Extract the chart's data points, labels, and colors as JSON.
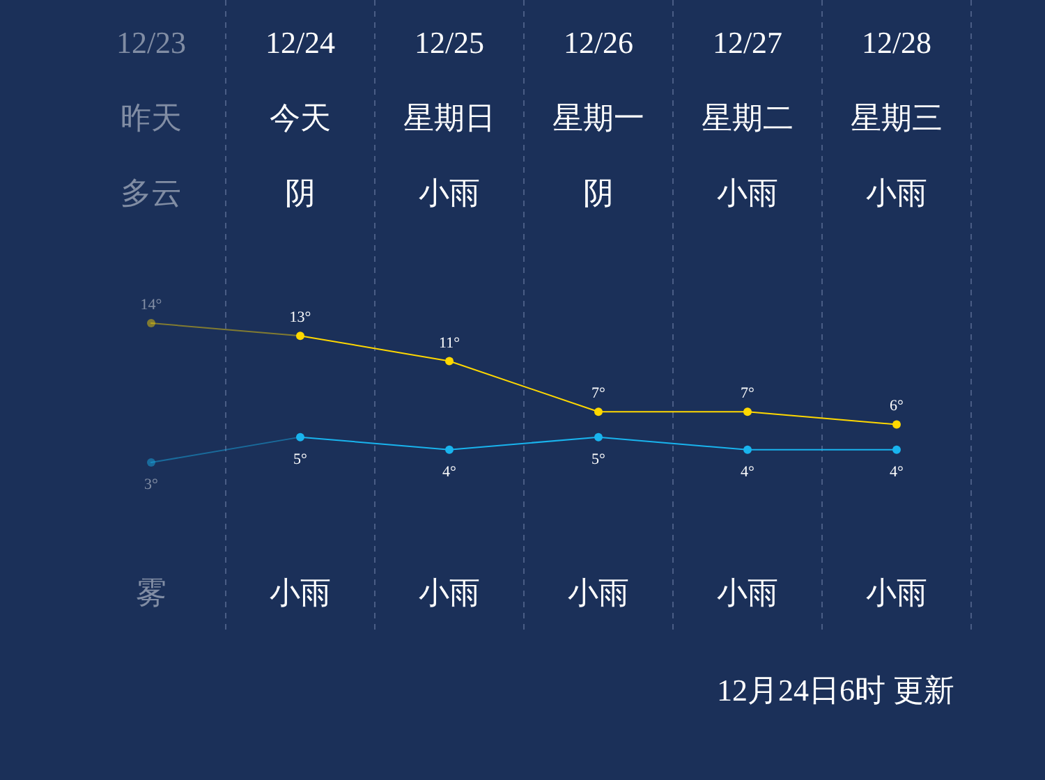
{
  "chart_data": {
    "type": "line",
    "categories": [
      "12/23",
      "12/24",
      "12/25",
      "12/26",
      "12/27",
      "12/28"
    ],
    "series": [
      {
        "color": "#ffd800",
        "values": [
          14,
          13,
          11,
          7,
          7,
          6
        ],
        "value_labels": [
          "14°",
          "13°",
          "11°",
          "7°",
          "7°",
          "6°"
        ]
      },
      {
        "color": "#19b4ee",
        "values": [
          3,
          5,
          4,
          5,
          4,
          4
        ],
        "value_labels": [
          "3°",
          "5°",
          "4°",
          "5°",
          "4°",
          "4°"
        ]
      }
    ],
    "marker": "circle",
    "grid": "x",
    "annotations": [
      "昨天",
      "今天",
      "星期日",
      "星期一",
      "星期二",
      "星期三",
      "多云",
      "阴",
      "小雨",
      "阴",
      "小雨",
      "小雨",
      "雾",
      "小雨",
      "小雨",
      "小雨",
      "小雨",
      "小雨",
      "12月24日6时 更新"
    ]
  }
}
